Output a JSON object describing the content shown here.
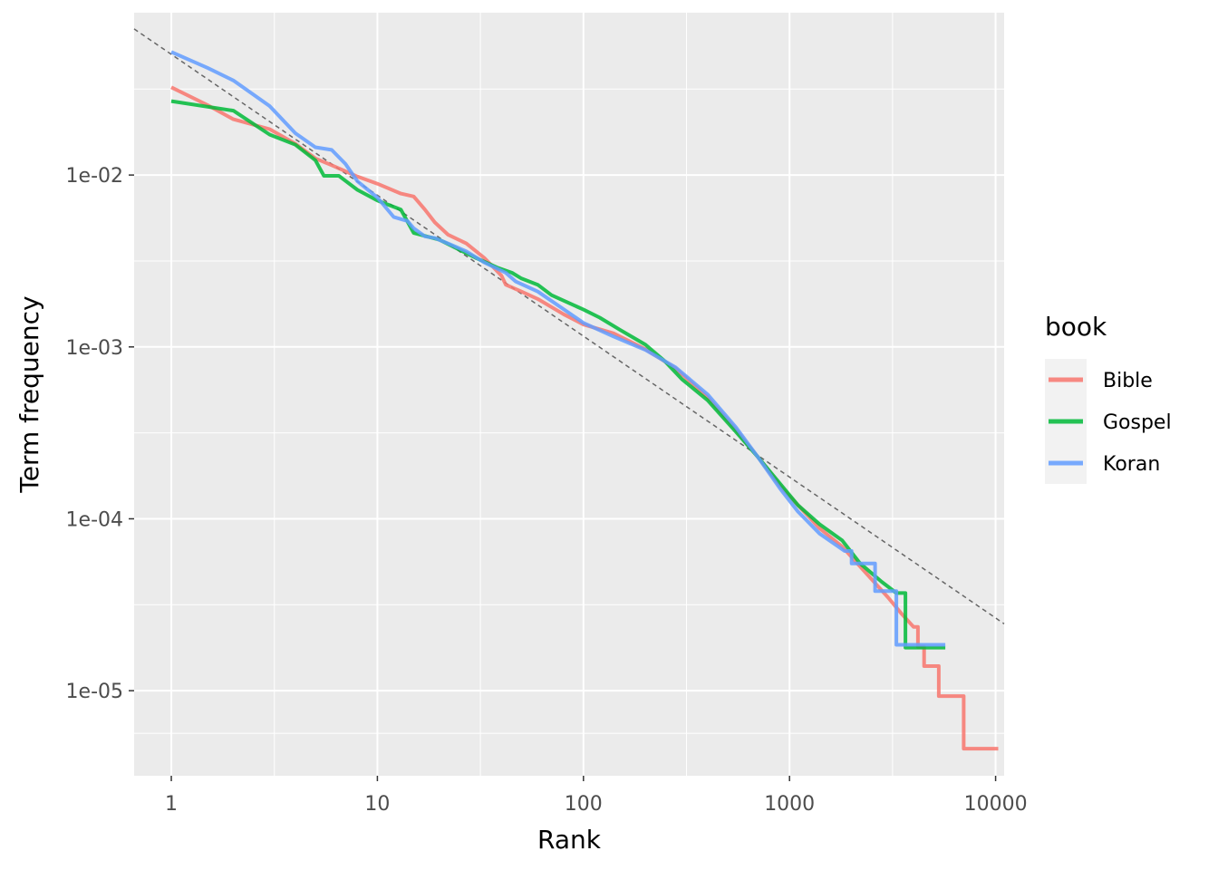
{
  "chart_data": {
    "type": "line",
    "title": "",
    "xlabel": "Rank",
    "ylabel": "Term frequency",
    "x_scale": "log10",
    "y_scale": "log10",
    "xlim": [
      0.66,
      11000
    ],
    "ylim": [
      3.2e-06,
      0.088
    ],
    "x_ticks": [
      1,
      10,
      100,
      1000,
      10000
    ],
    "x_tick_labels": [
      "1",
      "10",
      "100",
      "1000",
      "10000"
    ],
    "y_ticks": [
      1e-05,
      0.0001,
      0.001,
      0.01
    ],
    "y_tick_labels": [
      "1e-05",
      "1e-04",
      "1e-03",
      "1e-02"
    ],
    "grid": true,
    "legend": {
      "title": "book",
      "position": "right"
    },
    "reference_line": {
      "style": "dashed",
      "color": "#666666",
      "points": [
        [
          0.66,
          0.0708
        ],
        [
          11000,
          2.45e-05
        ]
      ]
    },
    "series": [
      {
        "name": "Bible",
        "color": "#F8766D",
        "points": [
          [
            1,
            0.0324
          ],
          [
            1.5,
            0.0255
          ],
          [
            2,
            0.0211
          ],
          [
            3,
            0.0185
          ],
          [
            4,
            0.0152
          ],
          [
            5,
            0.0125
          ],
          [
            6,
            0.0114
          ],
          [
            8,
            0.0098
          ],
          [
            10,
            0.0089
          ],
          [
            13,
            0.0078
          ],
          [
            15,
            0.0075
          ],
          [
            17,
            0.0063
          ],
          [
            19,
            0.0053
          ],
          [
            22,
            0.0045
          ],
          [
            27,
            0.004
          ],
          [
            33,
            0.0033
          ],
          [
            40,
            0.0026
          ],
          [
            42,
            0.0023
          ],
          [
            50,
            0.0021
          ],
          [
            60,
            0.0019
          ],
          [
            80,
            0.00155
          ],
          [
            100,
            0.00135
          ],
          [
            140,
            0.0012
          ],
          [
            200,
            0.00097
          ],
          [
            280,
            0.00075
          ],
          [
            400,
            0.00051
          ],
          [
            550,
            0.00033
          ],
          [
            700,
            0.00023
          ],
          [
            900,
            0.000155
          ],
          [
            1100,
            0.00012
          ],
          [
            1400,
            8.8e-05
          ],
          [
            1800,
            6.9e-05
          ],
          [
            2400,
            4.7e-05
          ],
          [
            3000,
            3.5e-05
          ],
          [
            3500,
            2.8e-05
          ],
          [
            4000,
            2.35e-05
          ],
          [
            4200,
            2.35e-05
          ],
          [
            4200,
            1.8e-05
          ],
          [
            4500,
            1.8e-05
          ],
          [
            4500,
            1.39e-05
          ],
          [
            5300,
            1.39e-05
          ],
          [
            5300,
            9.3e-06
          ],
          [
            7000,
            9.3e-06
          ],
          [
            7000,
            4.6e-06
          ],
          [
            10300,
            4.6e-06
          ]
        ]
      },
      {
        "name": "Gospel",
        "color": "#00BA38",
        "points": [
          [
            1,
            0.0269
          ],
          [
            2,
            0.0237
          ],
          [
            3,
            0.0172
          ],
          [
            4,
            0.015
          ],
          [
            5,
            0.0122
          ],
          [
            5.5,
            0.0099
          ],
          [
            6.5,
            0.0099
          ],
          [
            8,
            0.0082
          ],
          [
            10,
            0.0071
          ],
          [
            13,
            0.0063
          ],
          [
            15,
            0.0046
          ],
          [
            20,
            0.0042
          ],
          [
            30,
            0.0033
          ],
          [
            38,
            0.0029
          ],
          [
            45,
            0.0027
          ],
          [
            50,
            0.0025
          ],
          [
            60,
            0.0023
          ],
          [
            70,
            0.002
          ],
          [
            100,
            0.00165
          ],
          [
            120,
            0.00148
          ],
          [
            150,
            0.00126
          ],
          [
            200,
            0.00103
          ],
          [
            250,
            0.00082
          ],
          [
            300,
            0.00065
          ],
          [
            400,
            0.00049
          ],
          [
            550,
            0.00032
          ],
          [
            700,
            0.00023
          ],
          [
            900,
            0.00016
          ],
          [
            1100,
            0.00012
          ],
          [
            1400,
            9.3e-05
          ],
          [
            1800,
            7.5e-05
          ],
          [
            2200,
            5.5e-05
          ],
          [
            2800,
            4.3e-05
          ],
          [
            3300,
            3.7e-05
          ],
          [
            3650,
            3.7e-05
          ],
          [
            3650,
            1.78e-05
          ],
          [
            5700,
            1.78e-05
          ]
        ]
      },
      {
        "name": "Koran",
        "color": "#619CFF",
        "points": [
          [
            1,
            0.052
          ],
          [
            1.5,
            0.042
          ],
          [
            2,
            0.0355
          ],
          [
            3,
            0.0252
          ],
          [
            4,
            0.0175
          ],
          [
            5,
            0.0145
          ],
          [
            6,
            0.014
          ],
          [
            7,
            0.0116
          ],
          [
            8,
            0.0092
          ],
          [
            10,
            0.0074
          ],
          [
            12,
            0.0057
          ],
          [
            14,
            0.0054
          ],
          [
            15,
            0.0049
          ],
          [
            17,
            0.0044
          ],
          [
            19,
            0.0043
          ],
          [
            22,
            0.004
          ],
          [
            27,
            0.0036
          ],
          [
            33,
            0.0031
          ],
          [
            42,
            0.0027
          ],
          [
            47,
            0.0024
          ],
          [
            60,
            0.0021
          ],
          [
            80,
            0.00166
          ],
          [
            100,
            0.00138
          ],
          [
            140,
            0.00115
          ],
          [
            200,
            0.00096
          ],
          [
            280,
            0.00076
          ],
          [
            400,
            0.00053
          ],
          [
            550,
            0.00034
          ],
          [
            700,
            0.00023
          ],
          [
            900,
            0.00015
          ],
          [
            1100,
            0.00011
          ],
          [
            1400,
            8.2e-05
          ],
          [
            1850,
            6.5e-05
          ],
          [
            2000,
            6.5e-05
          ],
          [
            2000,
            5.5e-05
          ],
          [
            2600,
            5.5e-05
          ],
          [
            2600,
            3.8e-05
          ],
          [
            3300,
            3.8e-05
          ],
          [
            3300,
            1.85e-05
          ],
          [
            5700,
            1.85e-05
          ]
        ]
      }
    ]
  }
}
